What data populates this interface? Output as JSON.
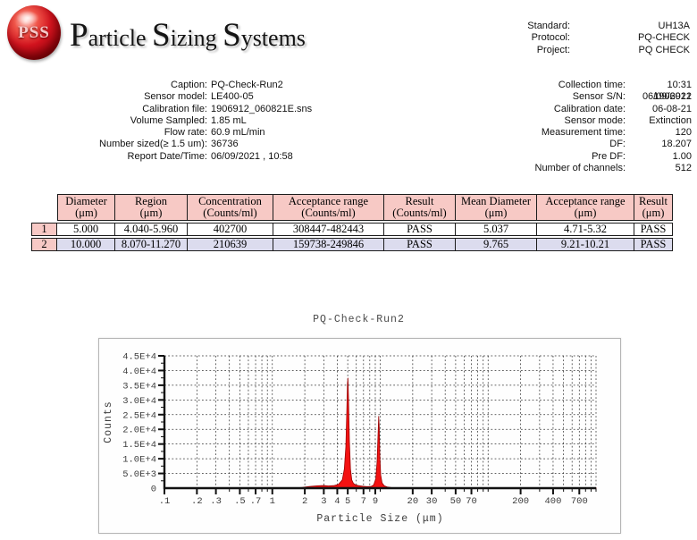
{
  "header": {
    "logo_text": "PSS",
    "brand_parts": [
      "P",
      "article ",
      "S",
      "izing ",
      "S",
      "ystems"
    ],
    "meta": [
      {
        "label": "Standard:",
        "value": "UH13A"
      },
      {
        "label": "Protocol:",
        "value": "PQ-CHECK"
      },
      {
        "label": "Project:",
        "value": "PQ CHECK"
      }
    ]
  },
  "run_info_left": [
    {
      "label": "Caption:",
      "value": "PQ-Check-Run2"
    },
    {
      "label": "Sensor model:",
      "value": "LE400-05"
    },
    {
      "label": "Calibration file:",
      "value": "1906912_060821E.sns"
    },
    {
      "label": "Volume Sampled:",
      "value": "1.85 mL"
    },
    {
      "label": "Flow rate:",
      "value": "60.9 mL/min"
    },
    {
      "label": "Number sized(≥ 1.5 um):",
      "value": "36736"
    },
    {
      "label": "Report Date/Time:",
      "value": "06/09/2021 , 10:58"
    }
  ],
  "run_info_right": [
    {
      "label": "Collection time:",
      "value": "10:31 06/09/2021"
    },
    {
      "label": "Sensor S/N:",
      "value": "1906912"
    },
    {
      "label": "Calibration date:",
      "value": "06-08-21"
    },
    {
      "label": "Sensor mode:",
      "value": "Extinction"
    },
    {
      "label": "Measurement time:",
      "value": "120"
    },
    {
      "label": "DF:",
      "value": "18.207"
    },
    {
      "label": "Pre DF:",
      "value": "1.00"
    },
    {
      "label": "Number of channels:",
      "value": "512"
    }
  ],
  "results_table": {
    "columns": [
      {
        "l1": "Diameter",
        "l2": "(μm)"
      },
      {
        "l1": "Region",
        "l2": "(μm)"
      },
      {
        "l1": "Concentration",
        "l2": "(Counts/ml)"
      },
      {
        "l1": "Acceptance range",
        "l2": "(Counts/ml)"
      },
      {
        "l1": "Result",
        "l2": "(Counts/ml)"
      },
      {
        "l1": "Mean Diameter",
        "l2": "(μm)"
      },
      {
        "l1": "Acceptance range",
        "l2": "(μm)"
      },
      {
        "l1": "Result",
        "l2": "(μm)"
      }
    ],
    "rows": [
      {
        "num": "1",
        "cells": [
          "5.000",
          "4.040-5.960",
          "402700",
          "308447-482443",
          "PASS",
          "5.037",
          "4.71-5.32",
          "PASS"
        ]
      },
      {
        "num": "2",
        "cells": [
          "10.000",
          "8.070-11.270",
          "210639",
          "159738-249846",
          "PASS",
          "9.765",
          "9.21-10.21",
          "PASS"
        ]
      }
    ]
  },
  "chart_data": {
    "type": "area",
    "title": "PQ-Check-Run2",
    "xlabel": "Particle Size (μm)",
    "ylabel": "Counts",
    "x_scale": "log",
    "xlim": [
      0.1,
      1000
    ],
    "ylim": [
      0,
      45000
    ],
    "grid": "both-dashed",
    "legend": "none",
    "y_minor_step": 2500,
    "y_ticks": [
      {
        "v": 0,
        "label": "0"
      },
      {
        "v": 5000,
        "label": "5.0E+3"
      },
      {
        "v": 10000,
        "label": "1.0E+4"
      },
      {
        "v": 15000,
        "label": "1.5E+4"
      },
      {
        "v": 20000,
        "label": "2.0E+4"
      },
      {
        "v": 25000,
        "label": "2.5E+4"
      },
      {
        "v": 30000,
        "label": "3.0E+4"
      },
      {
        "v": 35000,
        "label": "3.5E+4"
      },
      {
        "v": 40000,
        "label": "4.0E+4"
      },
      {
        "v": 45000,
        "label": "4.5E+4"
      }
    ],
    "x_major_ticks": [
      {
        "v": 0.1,
        "label": ".1"
      },
      {
        "v": 0.2,
        "label": ".2"
      },
      {
        "v": 0.3,
        "label": ".3"
      },
      {
        "v": 0.5,
        "label": ".5"
      },
      {
        "v": 0.7,
        "label": ".7"
      },
      {
        "v": 1,
        "label": "1"
      },
      {
        "v": 2,
        "label": "2"
      },
      {
        "v": 3,
        "label": "3"
      },
      {
        "v": 4,
        "label": "4"
      },
      {
        "v": 5,
        "label": "5"
      },
      {
        "v": 7,
        "label": "7"
      },
      {
        "v": 9,
        "label": "9"
      },
      {
        "v": 20,
        "label": "20"
      },
      {
        "v": 30,
        "label": "30"
      },
      {
        "v": 50,
        "label": "50"
      },
      {
        "v": 70,
        "label": "70"
      },
      {
        "v": 200,
        "label": "200"
      },
      {
        "v": 400,
        "label": "400"
      },
      {
        "v": 700,
        "label": "700"
      }
    ],
    "series": [
      {
        "name": "counts-distribution",
        "color": "#f31212",
        "stroke": "#990000",
        "points": [
          [
            1.6,
            0
          ],
          [
            1.9,
            250
          ],
          [
            2.2,
            550
          ],
          [
            2.6,
            800
          ],
          [
            3.0,
            900
          ],
          [
            3.3,
            750
          ],
          [
            3.7,
            850
          ],
          [
            4.1,
            1300
          ],
          [
            4.45,
            2800
          ],
          [
            4.65,
            6500
          ],
          [
            4.8,
            14000
          ],
          [
            4.9,
            26000
          ],
          [
            4.97,
            35500
          ],
          [
            5.02,
            37500
          ],
          [
            5.08,
            31000
          ],
          [
            5.18,
            16000
          ],
          [
            5.3,
            6500
          ],
          [
            5.45,
            2800
          ],
          [
            5.65,
            1600
          ],
          [
            5.9,
            1100
          ],
          [
            6.3,
            850
          ],
          [
            6.9,
            650
          ],
          [
            7.5,
            520
          ],
          [
            8.2,
            560
          ],
          [
            8.7,
            1100
          ],
          [
            9.1,
            3200
          ],
          [
            9.35,
            9000
          ],
          [
            9.55,
            18500
          ],
          [
            9.68,
            24500
          ],
          [
            9.78,
            21000
          ],
          [
            9.92,
            11000
          ],
          [
            10.1,
            4500
          ],
          [
            10.4,
            1800
          ],
          [
            10.9,
            800
          ],
          [
            11.6,
            420
          ],
          [
            12.6,
            220
          ],
          [
            14,
            120
          ],
          [
            16,
            70
          ],
          [
            20,
            45
          ],
          [
            30,
            35
          ],
          [
            60,
            30
          ],
          [
            150,
            30
          ],
          [
            400,
            30
          ],
          [
            1000,
            30
          ]
        ]
      }
    ]
  }
}
